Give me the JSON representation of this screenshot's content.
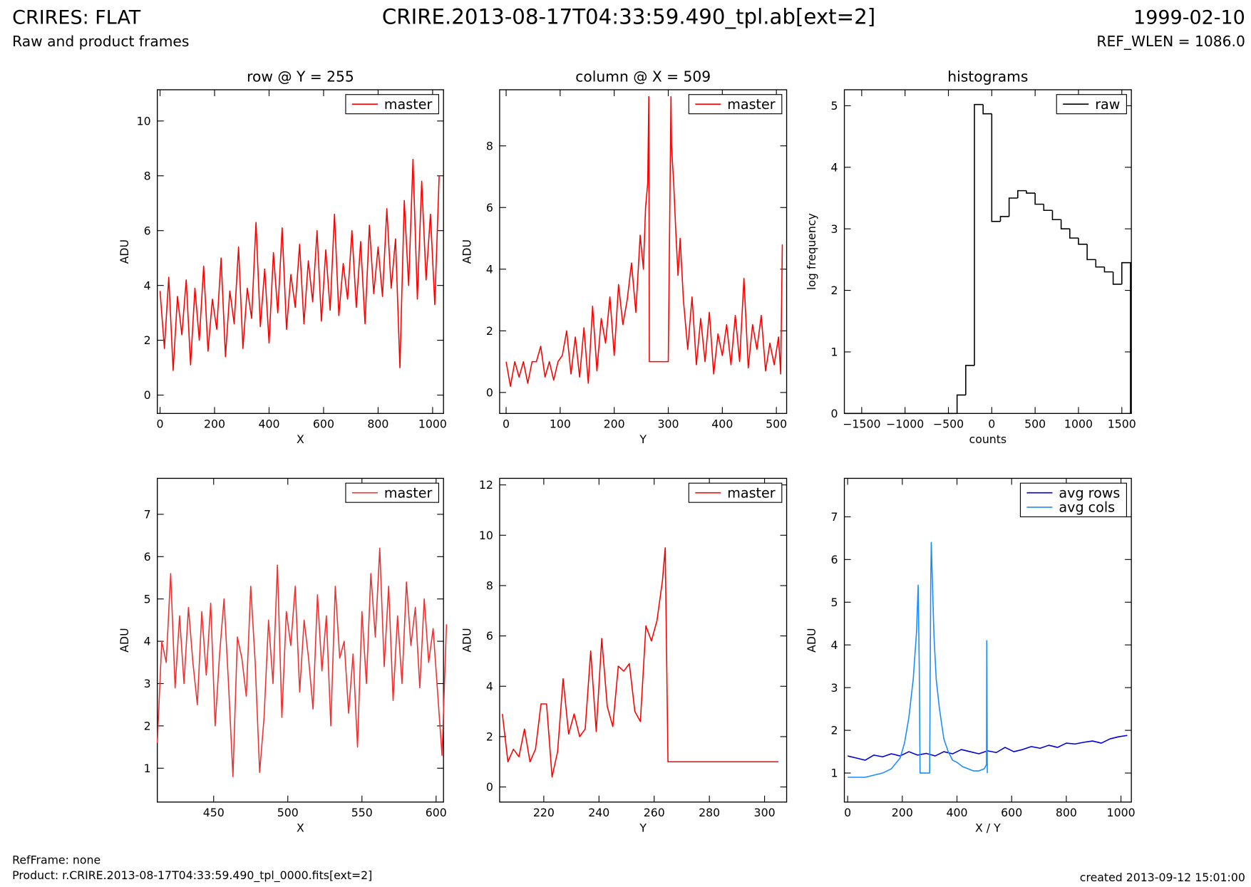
{
  "header": {
    "instrument": "CRIRES: FLAT",
    "subtitle": "Raw and product frames",
    "file": "CRIRE.2013-08-17T04:33:59.490_tpl.ab[ext=2]",
    "date": "1999-02-10",
    "ref_wlen": "REF_WLEN = 1086.0"
  },
  "footer": {
    "ref_frame": "RefFrame: none",
    "product": "Product: r.CRIRE.2013-08-17T04:33:59.490_tpl_0000.fits[ext=2]",
    "created": "created 2013-09-12 15:01:00"
  },
  "chart_data": [
    {
      "type": "line",
      "title": "row @ Y = 255",
      "x_label": "X",
      "y_label": "ADU",
      "legend": "upper right",
      "xlim": [
        -10,
        1040
      ],
      "xticks": [
        0,
        200,
        400,
        600,
        800,
        1000
      ],
      "ylim": [
        -0.67,
        11.14
      ],
      "yticks": [
        0,
        2,
        4,
        6,
        8,
        10
      ],
      "series": [
        {
          "name": "master",
          "color": "#ff0000",
          "x": [
            0,
            16,
            32,
            48,
            64,
            80,
            96,
            112,
            128,
            144,
            160,
            176,
            192,
            208,
            224,
            240,
            256,
            272,
            288,
            304,
            320,
            336,
            352,
            368,
            384,
            400,
            416,
            432,
            448,
            464,
            480,
            496,
            512,
            528,
            544,
            560,
            576,
            592,
            608,
            624,
            640,
            656,
            672,
            688,
            704,
            720,
            736,
            752,
            768,
            784,
            800,
            816,
            832,
            848,
            864,
            880,
            896,
            912,
            928,
            944,
            960,
            976,
            992,
            1008,
            1024
          ],
          "values": [
            3.8,
            1.7,
            4.3,
            0.9,
            3.6,
            2.2,
            4.2,
            1.1,
            3.9,
            2.0,
            4.7,
            1.6,
            3.5,
            2.4,
            5.0,
            1.4,
            3.8,
            2.6,
            5.4,
            1.7,
            3.9,
            2.8,
            6.3,
            2.5,
            4.6,
            1.9,
            5.2,
            3.0,
            6.1,
            2.4,
            4.4,
            3.2,
            5.5,
            2.6,
            4.9,
            3.4,
            6.0,
            2.7,
            5.3,
            3.1,
            6.6,
            2.9,
            4.8,
            3.5,
            6.0,
            3.2,
            5.6,
            2.6,
            6.2,
            3.7,
            5.4,
            3.6,
            6.8,
            3.9,
            5.7,
            1.0,
            7.1,
            4.0,
            8.6,
            3.5,
            7.8,
            4.2,
            6.6,
            3.3,
            8.0
          ]
        }
      ]
    },
    {
      "type": "line",
      "title": "column @ X = 509",
      "x_label": "Y",
      "y_label": "ADU",
      "legend": "upper right",
      "xlim": [
        -12,
        519
      ],
      "xticks": [
        0,
        100,
        200,
        300,
        400,
        500
      ],
      "ylim": [
        -0.68,
        9.82
      ],
      "yticks": [
        0,
        2,
        4,
        6,
        8
      ],
      "series": [
        {
          "name": "master",
          "color": "#ff0000",
          "x": [
            0,
            8,
            16,
            24,
            32,
            40,
            48,
            56,
            64,
            72,
            80,
            88,
            96,
            104,
            112,
            120,
            128,
            136,
            144,
            152,
            160,
            168,
            176,
            184,
            192,
            200,
            208,
            216,
            224,
            232,
            240,
            248,
            254,
            258,
            262,
            264,
            265,
            280,
            300,
            305,
            306,
            310,
            314,
            318,
            322,
            328,
            336,
            344,
            352,
            360,
            368,
            376,
            384,
            392,
            400,
            408,
            416,
            424,
            432,
            440,
            448,
            456,
            464,
            472,
            480,
            488,
            496,
            504,
            508,
            511
          ],
          "values": [
            1.0,
            0.2,
            1.0,
            0.5,
            1.0,
            0.3,
            1.0,
            1.0,
            1.5,
            0.5,
            1.0,
            0.4,
            1.0,
            1.2,
            2.0,
            0.6,
            1.8,
            0.5,
            2.1,
            0.3,
            2.8,
            0.7,
            2.4,
            1.6,
            3.1,
            1.2,
            3.5,
            2.2,
            3.0,
            4.2,
            2.6,
            5.1,
            4.0,
            6.0,
            6.8,
            9.6,
            1.0,
            1.0,
            1.0,
            9.6,
            8.0,
            6.8,
            5.2,
            3.8,
            5.0,
            3.0,
            1.4,
            3.1,
            0.9,
            2.4,
            1.0,
            2.6,
            0.6,
            1.9,
            1.2,
            2.2,
            0.9,
            2.5,
            1.0,
            3.7,
            0.8,
            2.2,
            1.4,
            2.5,
            0.7,
            1.6,
            0.9,
            1.8,
            0.6,
            4.8
          ]
        }
      ]
    },
    {
      "type": "histogram",
      "title": "histograms",
      "x_label": "counts",
      "y_label": "log frequency",
      "legend": "upper right",
      "xlim": [
        -1700,
        1610
      ],
      "xticks": [
        {
          "value": -1500,
          "label": "−1500"
        },
        {
          "value": -1000,
          "label": "−1000"
        },
        {
          "value": -500,
          "label": "−500"
        },
        0,
        500,
        1000,
        1500
      ],
      "ylim": [
        0,
        5.26
      ],
      "yticks": [
        0,
        1,
        2,
        3,
        4,
        5
      ],
      "bins": [
        -1700,
        -1600,
        -1500,
        -1400,
        -1300,
        -1200,
        -1100,
        -1000,
        -900,
        -800,
        -700,
        -600,
        -500,
        -400,
        -300,
        -200,
        -100,
        0,
        100,
        200,
        300,
        400,
        500,
        600,
        700,
        800,
        900,
        1000,
        1100,
        1200,
        1300,
        1400,
        1500,
        1600
      ],
      "series": [
        {
          "name": "raw",
          "color": "#000000",
          "values": [
            0,
            0,
            0,
            0,
            0,
            0,
            0,
            0,
            0,
            0,
            0,
            0,
            0,
            0.3,
            0.78,
            5.02,
            4.87,
            3.12,
            3.2,
            3.5,
            3.62,
            3.58,
            3.4,
            3.3,
            3.15,
            3.0,
            2.85,
            2.75,
            2.5,
            2.38,
            2.3,
            2.1,
            2.45
          ]
        }
      ]
    },
    {
      "type": "line",
      "x_label": "X",
      "y_label": "ADU",
      "legend": "upper right",
      "xlim": [
        412,
        605
      ],
      "xticks": [
        450,
        500,
        550,
        600
      ],
      "ylim": [
        0.2,
        7.85
      ],
      "yticks": [
        1,
        2,
        3,
        4,
        5,
        6,
        7
      ],
      "series": [
        {
          "name": "master",
          "color": "#f03030",
          "x": [
            412,
            415,
            418,
            421,
            424,
            427,
            430,
            433,
            436,
            439,
            442,
            445,
            448,
            451,
            454,
            457,
            460,
            463,
            466,
            469,
            472,
            475,
            478,
            481,
            484,
            487,
            490,
            493,
            496,
            499,
            502,
            505,
            508,
            511,
            514,
            517,
            520,
            523,
            526,
            529,
            532,
            535,
            538,
            541,
            544,
            547,
            550,
            553,
            556,
            559,
            562,
            565,
            568,
            571,
            574,
            577,
            580,
            583,
            586,
            589,
            592,
            595,
            598,
            601,
            604,
            607
          ],
          "values": [
            1.6,
            4.0,
            3.5,
            5.6,
            2.9,
            4.6,
            3.0,
            4.8,
            3.5,
            2.5,
            4.7,
            3.2,
            4.9,
            2.0,
            3.7,
            5.0,
            3.0,
            0.8,
            4.1,
            3.6,
            2.7,
            5.3,
            3.5,
            0.9,
            2.2,
            4.5,
            3.0,
            5.8,
            2.2,
            4.7,
            3.9,
            5.3,
            2.8,
            4.5,
            3.6,
            2.4,
            5.1,
            3.3,
            4.6,
            2.0,
            5.3,
            3.6,
            4.0,
            2.3,
            3.7,
            1.5,
            4.7,
            3.0,
            5.6,
            4.1,
            6.2,
            3.4,
            5.3,
            2.6,
            4.6,
            3.0,
            5.4,
            3.9,
            4.8,
            2.9,
            5.0,
            3.5,
            4.3,
            2.8,
            1.3,
            4.4
          ]
        }
      ]
    },
    {
      "type": "line",
      "x_label": "Y",
      "y_label": "ADU",
      "legend": "upper right",
      "xlim": [
        204,
        308
      ],
      "xticks": [
        220,
        240,
        260,
        280,
        300
      ],
      "ylim": [
        -0.6,
        12.26
      ],
      "yticks": [
        0,
        2,
        4,
        6,
        8,
        10,
        12
      ],
      "series": [
        {
          "name": "master",
          "color": "#ff0000",
          "x": [
            205,
            207,
            209,
            211,
            213,
            215,
            217,
            219,
            221,
            223,
            225,
            227,
            229,
            231,
            233,
            235,
            237,
            239,
            241,
            243,
            245,
            247,
            249,
            251,
            253,
            255,
            257,
            259,
            261,
            263,
            264,
            265,
            305
          ],
          "values": [
            2.9,
            1.0,
            1.5,
            1.2,
            2.3,
            1.0,
            1.5,
            3.3,
            3.3,
            0.4,
            1.4,
            4.3,
            2.1,
            2.9,
            2.0,
            2.3,
            5.4,
            2.2,
            5.9,
            3.2,
            2.4,
            4.8,
            4.6,
            4.9,
            3.0,
            2.6,
            6.4,
            5.8,
            6.6,
            8.2,
            9.5,
            1.0,
            1.0
          ]
        }
      ]
    },
    {
      "type": "line",
      "x_label": "X / Y",
      "y_label": "ADU",
      "legend": "upper right",
      "xlim": [
        -12,
        1038
      ],
      "xticks": [
        0,
        200,
        400,
        600,
        800,
        1000
      ],
      "ylim": [
        0.32,
        7.9
      ],
      "yticks": [
        1,
        2,
        3,
        4,
        5,
        6,
        7
      ],
      "series": [
        {
          "name": "avg rows",
          "color": "#0000dd",
          "x": [
            0,
            32,
            64,
            96,
            128,
            160,
            192,
            224,
            256,
            288,
            320,
            352,
            384,
            416,
            448,
            480,
            512,
            544,
            576,
            608,
            640,
            672,
            704,
            736,
            768,
            800,
            832,
            864,
            896,
            928,
            960,
            992,
            1023
          ],
          "values": [
            1.4,
            1.35,
            1.3,
            1.42,
            1.38,
            1.45,
            1.4,
            1.5,
            1.42,
            1.46,
            1.4,
            1.5,
            1.45,
            1.55,
            1.5,
            1.45,
            1.52,
            1.48,
            1.6,
            1.5,
            1.55,
            1.62,
            1.58,
            1.65,
            1.6,
            1.7,
            1.68,
            1.72,
            1.75,
            1.7,
            1.8,
            1.85,
            1.88
          ]
        },
        {
          "name": "avg cols",
          "color": "#1a8cff",
          "x": [
            0,
            32,
            64,
            96,
            128,
            160,
            192,
            208,
            224,
            240,
            252,
            258,
            262,
            265,
            300,
            304,
            306,
            310,
            316,
            324,
            336,
            352,
            368,
            384,
            400,
            420,
            440,
            460,
            480,
            500,
            508,
            509,
            511
          ],
          "values": [
            0.9,
            0.9,
            0.9,
            0.95,
            1.0,
            1.1,
            1.35,
            1.7,
            2.3,
            3.2,
            4.3,
            5.4,
            3.5,
            1.0,
            1.0,
            5.5,
            6.4,
            5.5,
            4.2,
            3.2,
            2.5,
            1.8,
            1.5,
            1.3,
            1.25,
            1.15,
            1.1,
            1.05,
            1.05,
            1.1,
            1.2,
            4.1,
            1.0
          ]
        }
      ]
    }
  ]
}
